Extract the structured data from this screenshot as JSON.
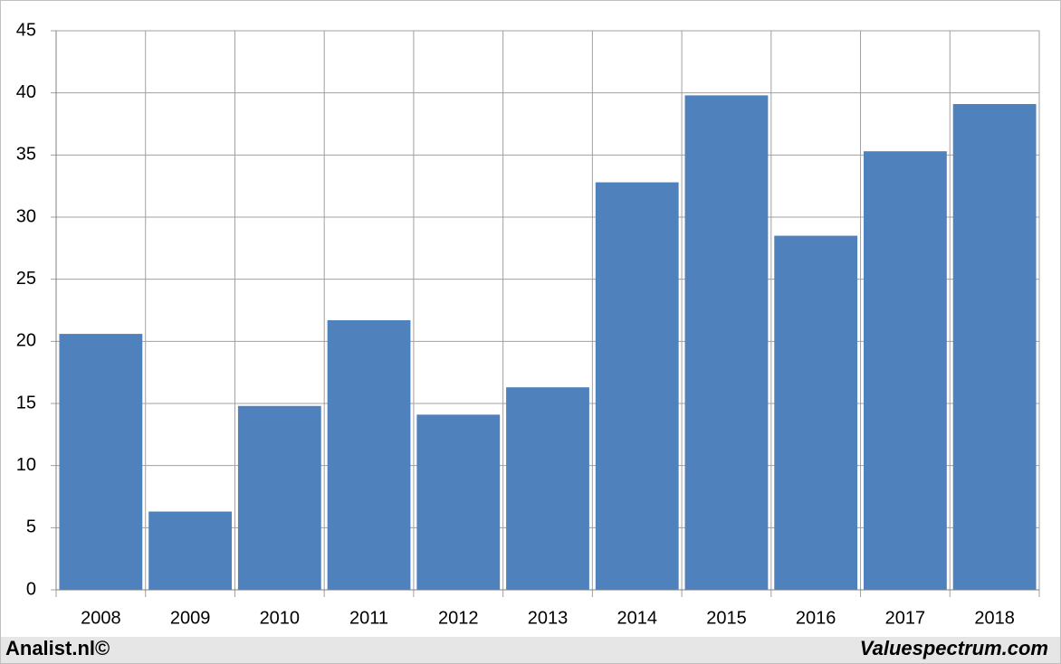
{
  "chart_data": {
    "type": "bar",
    "categories": [
      "2008",
      "2009",
      "2010",
      "2011",
      "2012",
      "2013",
      "2014",
      "2015",
      "2016",
      "2017",
      "2018"
    ],
    "values": [
      20.6,
      6.3,
      14.8,
      21.7,
      14.1,
      16.3,
      32.8,
      39.8,
      28.5,
      35.3,
      39.1
    ],
    "color": "#4f81bd",
    "ylim": [
      0,
      45
    ],
    "yticks": [
      0,
      5,
      10,
      15,
      20,
      25,
      30,
      35,
      40,
      45
    ],
    "grid": true
  },
  "footer": {
    "left": "Analist.nl©",
    "right": "Valuespectrum.com"
  }
}
